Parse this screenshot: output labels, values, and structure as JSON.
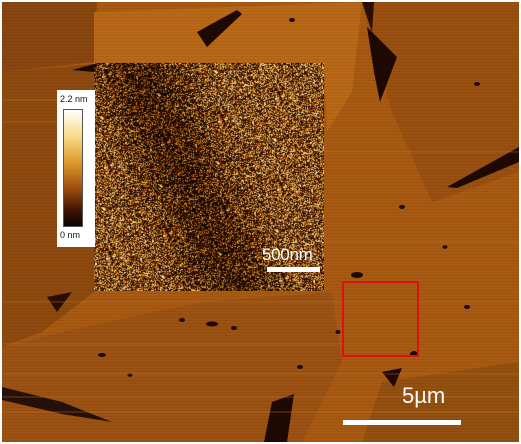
{
  "image": {
    "subject": "afm-topography-micrograph",
    "palette": {
      "terrace": "#a85a12",
      "terrace_dark": "#6e3208",
      "crack": "#1e0a02",
      "roi_box": "#e01010",
      "scale_bar": "#ffffff"
    }
  },
  "colorbar": {
    "max_label": "2.2 nm",
    "min_label": "0 nm"
  },
  "inset": {
    "scale_label": "500nm"
  },
  "main": {
    "scale_label": "5µm"
  }
}
